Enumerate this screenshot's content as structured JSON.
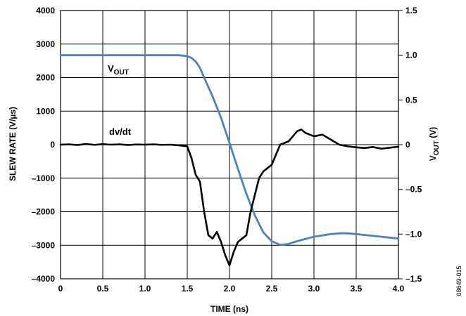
{
  "chart_data": {
    "type": "line",
    "xlabel": "TIME (ns)",
    "ylabel_left": "SLEW RATE (V/µs)",
    "ylabel_right_main": "V",
    "ylabel_right_sub": "OUT",
    "ylabel_right_unit": " (V)",
    "xlim": [
      0,
      4.0
    ],
    "ylim_left": [
      -4000,
      4000
    ],
    "ylim_right": [
      -1.5,
      1.5
    ],
    "x_ticks": [
      "0",
      "0.5",
      "1.0",
      "1.5",
      "2.0",
      "2.5",
      "3.0",
      "3.5",
      "4.0"
    ],
    "y_left_ticks": [
      "4000",
      "3000",
      "2000",
      "1000",
      "0",
      "–1000",
      "–2000",
      "–3000",
      "–4000"
    ],
    "y_right_ticks": [
      "1.5",
      "1.0",
      "0.5",
      "0",
      "–0.5",
      "–1.0",
      "–1.5"
    ],
    "grid": true,
    "figure_code": "08649-015",
    "series": [
      {
        "name": "dv/dt",
        "axis": "left",
        "color": "#000000",
        "x": [
          0,
          0.1,
          0.2,
          0.3,
          0.4,
          0.5,
          0.6,
          0.7,
          0.8,
          0.9,
          1.0,
          1.1,
          1.2,
          1.3,
          1.4,
          1.5,
          1.55,
          1.6,
          1.65,
          1.7,
          1.75,
          1.8,
          1.85,
          1.9,
          1.95,
          2.0,
          2.05,
          2.1,
          2.15,
          2.2,
          2.25,
          2.3,
          2.35,
          2.4,
          2.45,
          2.5,
          2.55,
          2.6,
          2.7,
          2.8,
          2.85,
          2.9,
          3.0,
          3.1,
          3.2,
          3.3,
          3.4,
          3.5,
          3.6,
          3.7,
          3.8,
          3.9,
          4.0
        ],
        "y": [
          0,
          10,
          -10,
          20,
          -5,
          15,
          0,
          10,
          -10,
          5,
          0,
          10,
          -5,
          0,
          -20,
          -50,
          -400,
          -900,
          -1100,
          -2000,
          -2700,
          -2800,
          -2600,
          -2900,
          -3300,
          -3600,
          -3200,
          -2900,
          -2800,
          -2700,
          -2000,
          -1500,
          -1000,
          -800,
          -700,
          -600,
          -300,
          0,
          100,
          400,
          450,
          350,
          250,
          300,
          150,
          0,
          -50,
          -80,
          -100,
          -70,
          -120,
          -90,
          -60
        ]
      },
      {
        "name_main": "V",
        "name_sub": "OUT",
        "axis": "right",
        "color": "#4f81bd",
        "x": [
          0,
          0.5,
          1.0,
          1.4,
          1.5,
          1.55,
          1.6,
          1.65,
          1.7,
          1.8,
          1.9,
          2.0,
          2.1,
          2.2,
          2.3,
          2.4,
          2.5,
          2.6,
          2.7,
          2.8,
          3.0,
          3.2,
          3.35,
          3.5,
          3.7,
          3.9,
          4.0
        ],
        "y": [
          1.0,
          1.0,
          1.0,
          1.0,
          0.99,
          0.97,
          0.93,
          0.86,
          0.75,
          0.54,
          0.3,
          0.02,
          -0.27,
          -0.55,
          -0.79,
          -0.98,
          -1.08,
          -1.12,
          -1.11,
          -1.08,
          -1.03,
          -1.0,
          -0.99,
          -1.0,
          -1.02,
          -1.04,
          -1.05
        ]
      }
    ]
  }
}
